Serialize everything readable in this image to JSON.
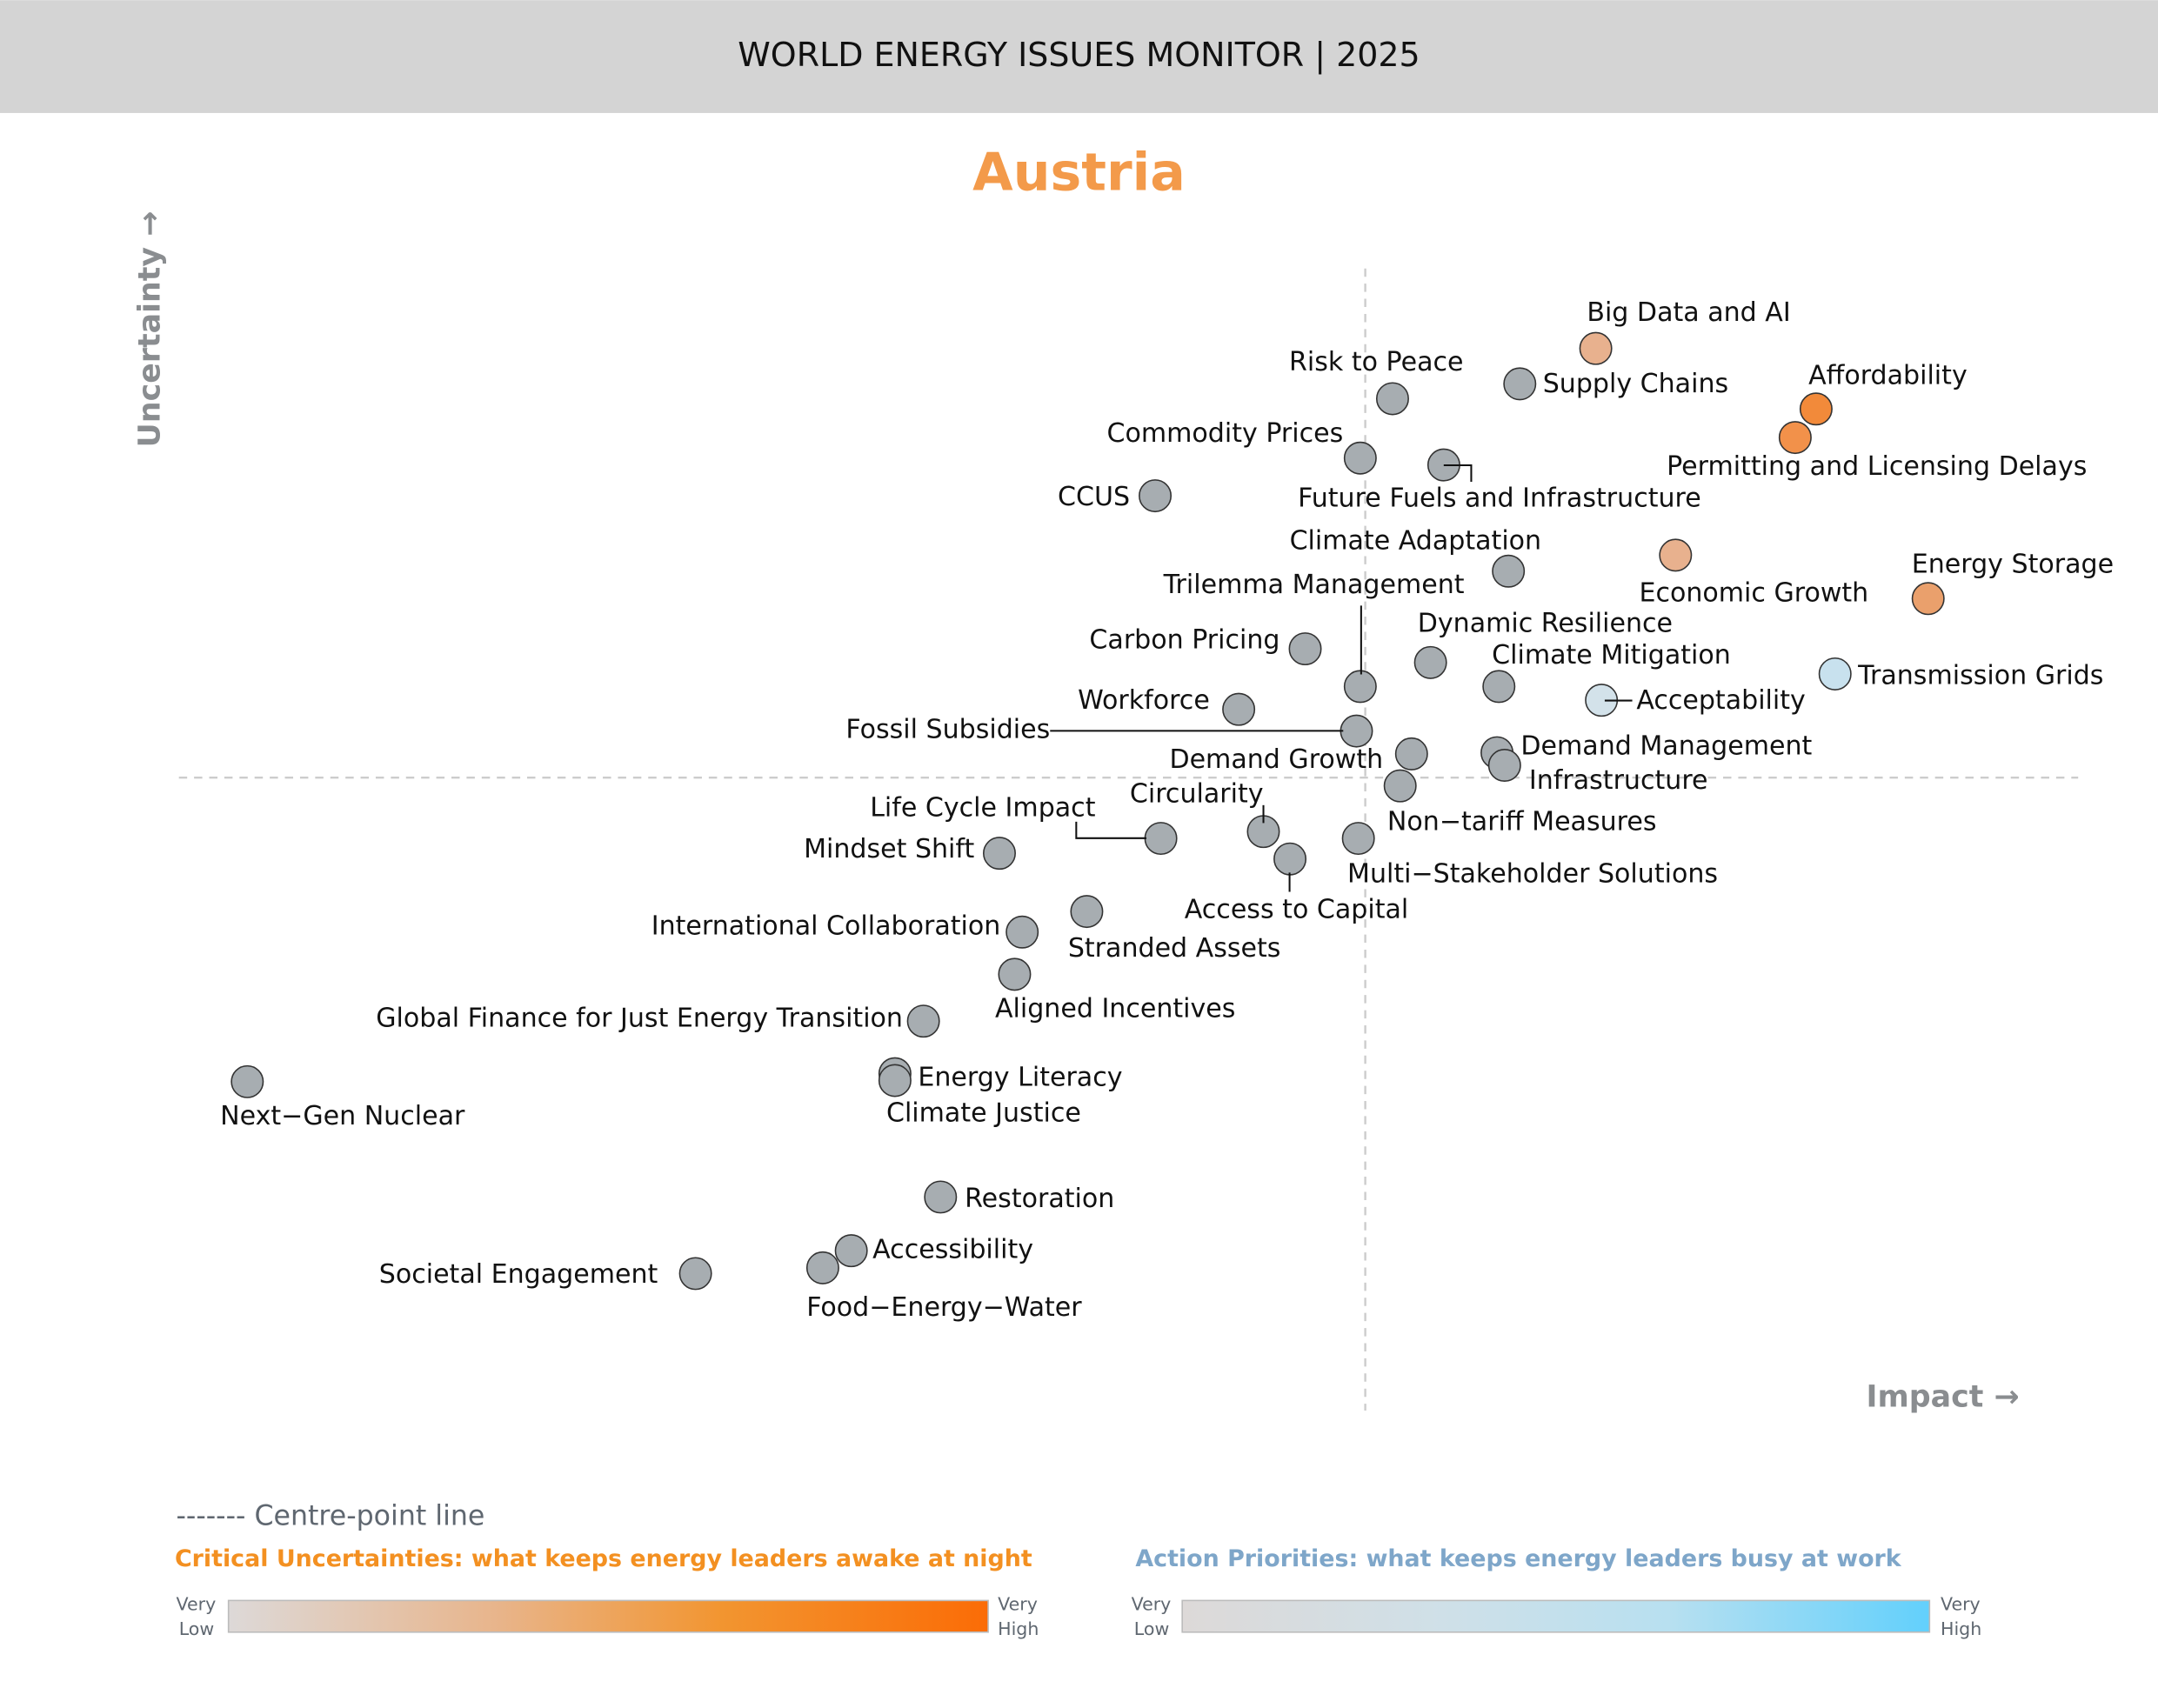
{
  "header": {
    "title": "WORLD ENERGY ISSUES MONITOR | 2025"
  },
  "chart_data": {
    "type": "scatter",
    "title": "Austria",
    "xlabel": "Impact →",
    "ylabel": "Uncertainty →",
    "xlim": [
      0,
      100
    ],
    "ylim": [
      0,
      100
    ],
    "centre_point": {
      "impact": 62.5,
      "uncertainty": 55.4
    },
    "grid": false,
    "colors": {
      "title": "#f39a4a",
      "neutral": "#a7adb1",
      "outline": "#333333"
    },
    "points": [
      {
        "label": "Big Data and AI",
        "impact": 74.6,
        "uncertainty": 93.0,
        "color": "#e8b18e"
      },
      {
        "label": "Supply Chains",
        "impact": 70.6,
        "uncertainty": 89.9,
        "color": "#a7adb1"
      },
      {
        "label": "Risk to Peace",
        "impact": 63.9,
        "uncertainty": 88.6,
        "color": "#a7adb1"
      },
      {
        "label": "Affordability",
        "impact": 86.2,
        "uncertainty": 87.7,
        "color": "#f28a3a"
      },
      {
        "label": "Permitting and Licensing Delays",
        "impact": 85.1,
        "uncertainty": 85.2,
        "color": "#f2914a"
      },
      {
        "label": "Commodity Prices",
        "impact": 62.2,
        "uncertainty": 83.4,
        "color": "#a7adb1"
      },
      {
        "label": "Future Fuels and Infrastructure",
        "impact": 66.6,
        "uncertainty": 82.8,
        "color": "#a7adb1"
      },
      {
        "label": "CCUS",
        "impact": 51.4,
        "uncertainty": 80.1,
        "color": "#a7adb1"
      },
      {
        "label": "Climate Adaptation",
        "impact": 70.0,
        "uncertainty": 73.5,
        "color": "#a7adb1"
      },
      {
        "label": "Economic Growth",
        "impact": 78.8,
        "uncertainty": 74.9,
        "color": "#e8b18e"
      },
      {
        "label": "Energy Storage",
        "impact": 92.1,
        "uncertainty": 71.1,
        "color": "#eaa06c"
      },
      {
        "label": "Trilemma Management",
        "impact": 62.2,
        "uncertainty": 63.4,
        "color": "#a7adb1"
      },
      {
        "label": "Carbon Pricing",
        "impact": 59.3,
        "uncertainty": 66.7,
        "color": "#a7adb1"
      },
      {
        "label": "Dynamic Resilience",
        "impact": 65.9,
        "uncertainty": 65.5,
        "color": "#a7adb1"
      },
      {
        "label": "Climate Mitigation",
        "impact": 69.5,
        "uncertainty": 63.4,
        "color": "#a7adb1"
      },
      {
        "label": "Acceptability",
        "impact": 74.9,
        "uncertainty": 62.2,
        "color": "#d3e2ea"
      },
      {
        "label": "Transmission Grids",
        "impact": 87.2,
        "uncertainty": 64.5,
        "color": "#c8e1ee"
      },
      {
        "label": "Workforce",
        "impact": 55.8,
        "uncertainty": 61.4,
        "color": "#a7adb1"
      },
      {
        "label": "Fossil Subsidies",
        "impact": 62.0,
        "uncertainty": 59.5,
        "color": "#a7adb1"
      },
      {
        "label": "Demand Growth",
        "impact": 64.9,
        "uncertainty": 57.5,
        "color": "#a7adb1"
      },
      {
        "label": "Demand Management",
        "impact": 69.4,
        "uncertainty": 57.6,
        "color": "#a7adb1"
      },
      {
        "label": "Infrastructure",
        "impact": 69.8,
        "uncertainty": 56.5,
        "color": "#a7adb1"
      },
      {
        "label": "Non−tariff Measures",
        "impact": 64.3,
        "uncertainty": 54.7,
        "color": "#a7adb1"
      },
      {
        "label": "Multi−Stakeholder Solutions",
        "impact": 62.1,
        "uncertainty": 50.1,
        "color": "#a7adb1"
      },
      {
        "label": "Circularity",
        "impact": 57.1,
        "uncertainty": 50.7,
        "color": "#a7adb1"
      },
      {
        "label": "Life Cycle Impact",
        "impact": 51.7,
        "uncertainty": 50.1,
        "color": "#a7adb1"
      },
      {
        "label": "Access to Capital",
        "impact": 58.5,
        "uncertainty": 48.3,
        "color": "#a7adb1"
      },
      {
        "label": "Mindset Shift",
        "impact": 43.2,
        "uncertainty": 48.8,
        "color": "#a7adb1"
      },
      {
        "label": "Stranded Assets",
        "impact": 47.8,
        "uncertainty": 43.7,
        "color": "#a7adb1"
      },
      {
        "label": "International Collaboration",
        "impact": 44.4,
        "uncertainty": 41.9,
        "color": "#a7adb1"
      },
      {
        "label": "Aligned Incentives",
        "impact": 44.0,
        "uncertainty": 38.2,
        "color": "#a7adb1"
      },
      {
        "label": "Global Finance for Just Energy Transition",
        "impact": 39.2,
        "uncertainty": 34.1,
        "color": "#a7adb1"
      },
      {
        "label": "Next−Gen Nuclear",
        "impact": 3.6,
        "uncertainty": 28.8,
        "color": "#a7adb1"
      },
      {
        "label": "Energy Literacy",
        "impact": 37.7,
        "uncertainty": 29.5,
        "color": "#a7adb1"
      },
      {
        "label": "Climate Justice",
        "impact": 37.7,
        "uncertainty": 28.9,
        "color": "#a7adb1"
      },
      {
        "label": "Restoration",
        "impact": 40.1,
        "uncertainty": 18.7,
        "color": "#a7adb1"
      },
      {
        "label": "Accessibility",
        "impact": 35.4,
        "uncertainty": 14.0,
        "color": "#a7adb1"
      },
      {
        "label": "Food−Energy−Water",
        "impact": 33.9,
        "uncertainty": 12.5,
        "color": "#a7adb1"
      },
      {
        "label": "Societal Engagement",
        "impact": 27.2,
        "uncertainty": 12.0,
        "color": "#a7adb1"
      }
    ]
  },
  "legend": {
    "centre_line": "------- Centre-point line",
    "critical": {
      "title": "Critical Uncertainties: what keeps energy leaders awake at night",
      "low": [
        "Very",
        "Low"
      ],
      "high": [
        "Very",
        "High"
      ],
      "gradient": [
        "#ddd9d8",
        "#e8b58c",
        "#f29530",
        "#fb6c06"
      ],
      "color": "#f39021"
    },
    "action": {
      "title": "Action Priorities: what keeps energy leaders busy at work",
      "low": [
        "Very",
        "Low"
      ],
      "high": [
        "Very",
        "High"
      ],
      "gradient": [
        "#ddd9d8",
        "#cfe0e8",
        "#b8e0f0",
        "#62d0fc"
      ],
      "color": "#7ea6c9"
    }
  }
}
